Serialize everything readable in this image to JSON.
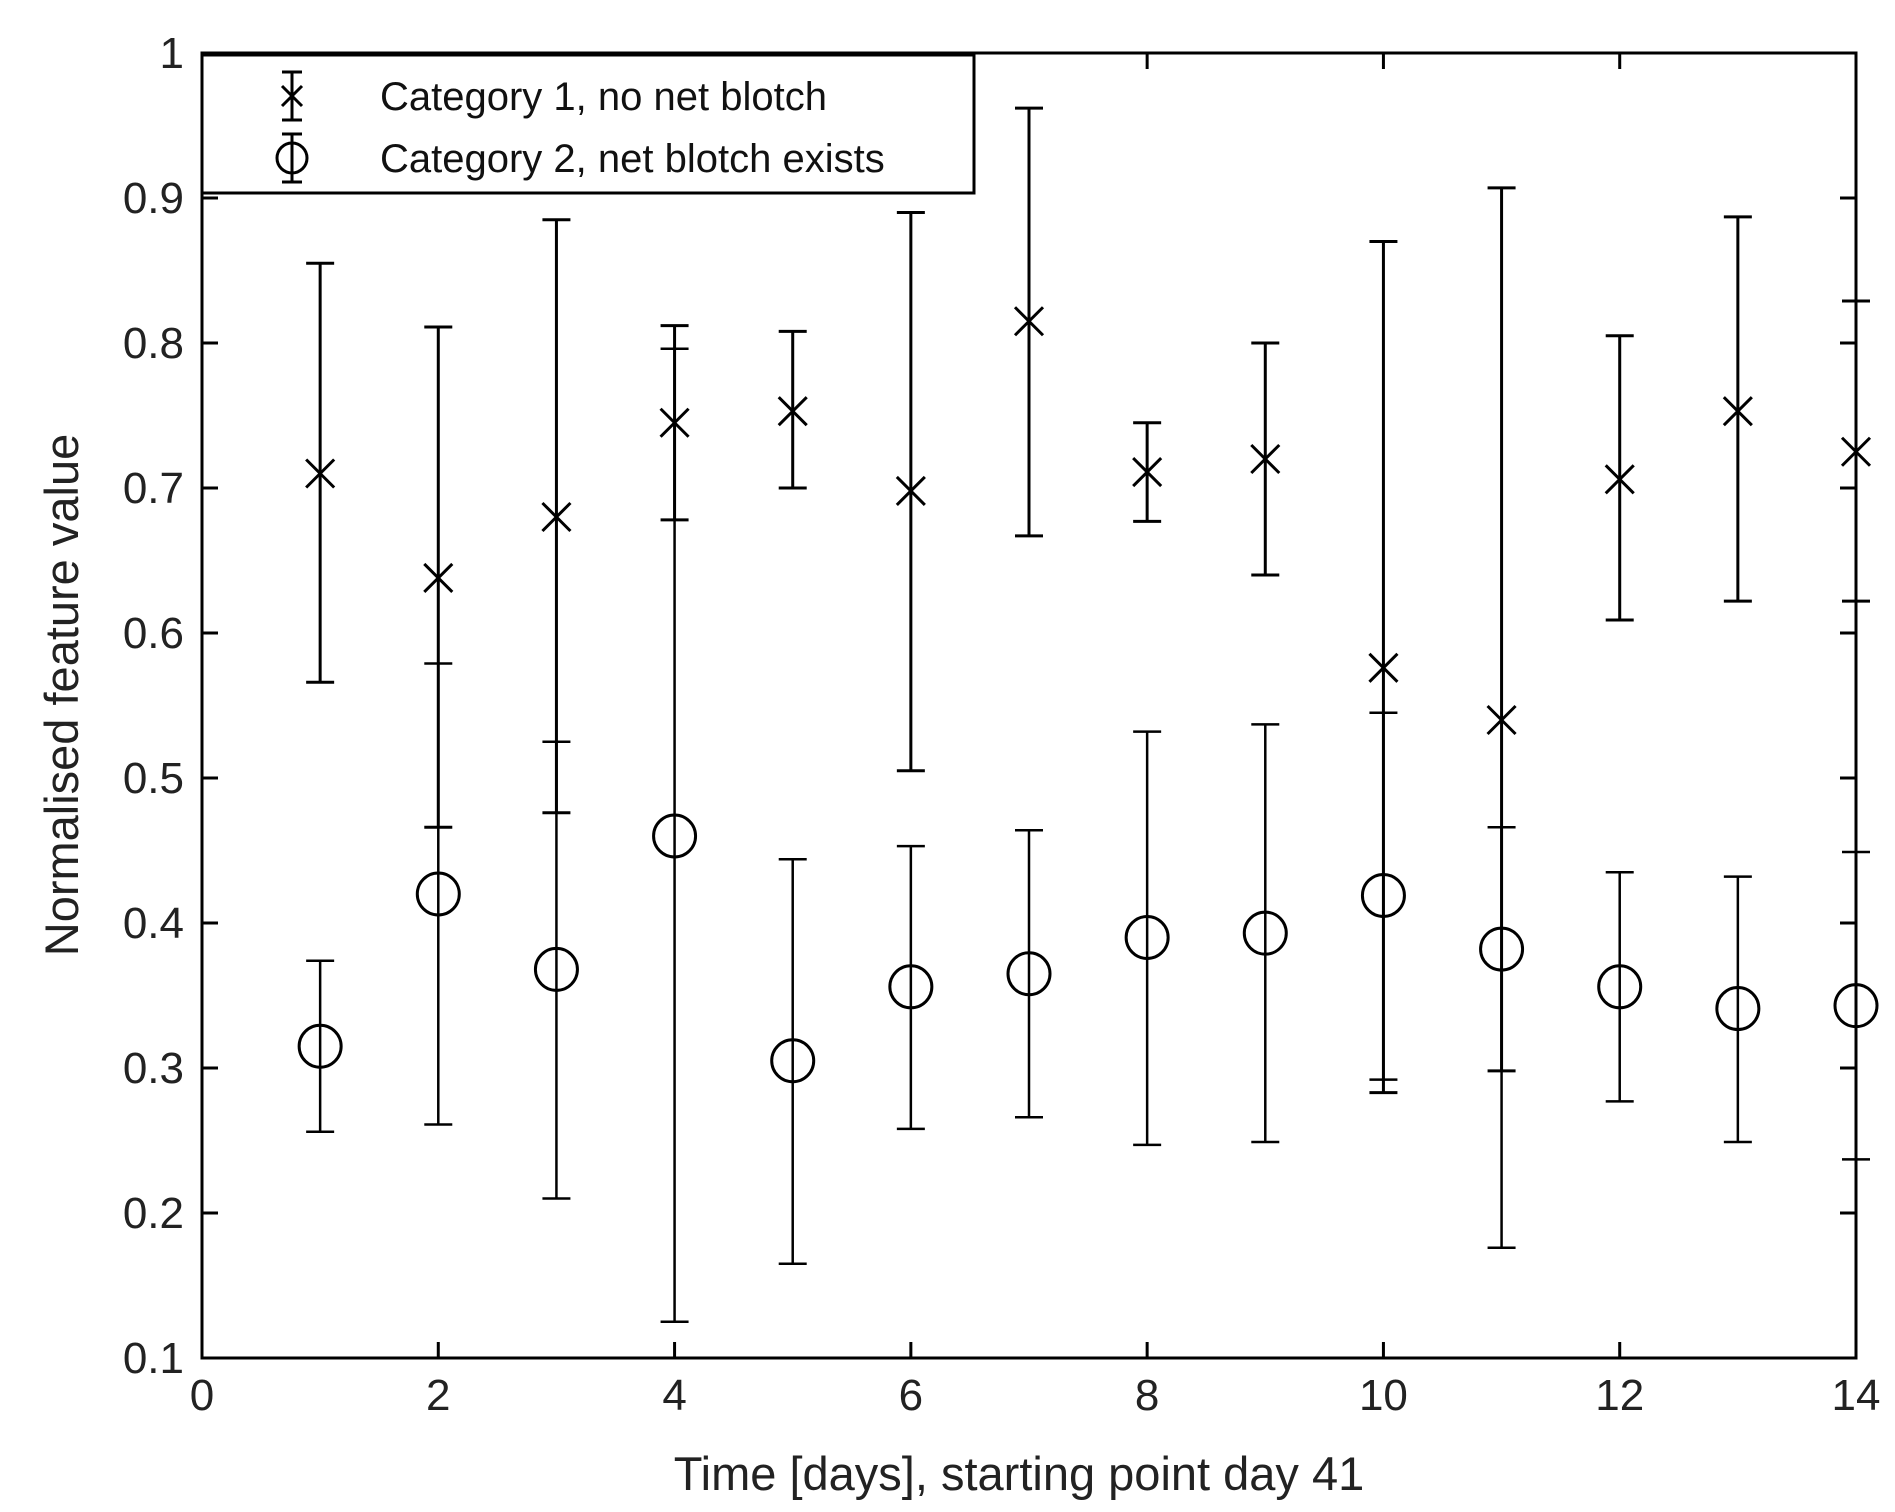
{
  "chart_data": {
    "type": "scatter",
    "title": "",
    "xlabel": "Time [days], starting point day 41",
    "ylabel": "Normalised feature value",
    "xlim": [
      0,
      14
    ],
    "ylim": [
      0.1,
      1
    ],
    "xticks": [
      0,
      2,
      4,
      6,
      8,
      10,
      12,
      14
    ],
    "xtick_labels": [
      "0",
      "2",
      "4",
      "6",
      "8",
      "10",
      "12",
      "14"
    ],
    "yticks": [
      0.1,
      0.2,
      0.3,
      0.4,
      0.5,
      0.6,
      0.7,
      0.8,
      0.9,
      1
    ],
    "ytick_labels": [
      "0.1",
      "0.2",
      "0.3",
      "0.4",
      "0.5",
      "0.6",
      "0.7",
      "0.8",
      "0.9",
      "1"
    ],
    "grid": false,
    "legend_position": "top-left",
    "series": [
      {
        "name": "Category 1, no net blotch",
        "marker": "x",
        "color": "#000000",
        "x": [
          1,
          2,
          3,
          4,
          5,
          6,
          7,
          8,
          9,
          10,
          11,
          12,
          13,
          14
        ],
        "y": [
          0.71,
          0.638,
          0.68,
          0.745,
          0.753,
          0.698,
          0.815,
          0.711,
          0.72,
          0.576,
          0.54,
          0.706,
          0.753,
          0.725
        ],
        "lower": [
          0.566,
          0.466,
          0.476,
          0.678,
          0.7,
          0.505,
          0.667,
          0.677,
          0.64,
          0.283,
          0.298,
          0.609,
          0.622,
          0.622
        ],
        "upper": [
          0.855,
          0.811,
          0.885,
          0.812,
          0.808,
          0.89,
          0.962,
          0.745,
          0.8,
          0.87,
          0.907,
          0.805,
          0.887,
          0.829
        ]
      },
      {
        "name": "Category 2, net blotch exists",
        "marker": "o",
        "color": "#000000",
        "x": [
          1,
          2,
          3,
          4,
          5,
          6,
          7,
          8,
          9,
          10,
          11,
          12,
          13,
          14
        ],
        "y": [
          0.315,
          0.42,
          0.368,
          0.46,
          0.305,
          0.356,
          0.365,
          0.39,
          0.393,
          0.419,
          0.382,
          0.356,
          0.341,
          0.343
        ],
        "lower": [
          0.256,
          0.261,
          0.21,
          0.125,
          0.165,
          0.258,
          0.266,
          0.247,
          0.249,
          0.292,
          0.176,
          0.277,
          0.249,
          0.237
        ],
        "upper": [
          0.374,
          0.579,
          0.525,
          0.796,
          0.444,
          0.453,
          0.464,
          0.532,
          0.537,
          0.545,
          0.466,
          0.435,
          0.432,
          0.449
        ]
      }
    ]
  }
}
